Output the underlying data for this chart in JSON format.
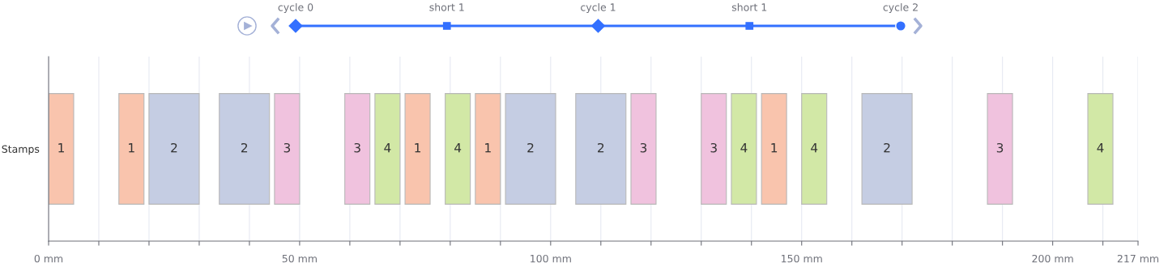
{
  "chart_data": {
    "type": "bar",
    "orientation": "horizontal",
    "categories": [
      "Stamps"
    ],
    "xlim": [
      0,
      217
    ],
    "xticks": [
      {
        "value": 0,
        "label": "0 mm"
      },
      {
        "value": 10,
        "label": null
      },
      {
        "value": 20,
        "label": null
      },
      {
        "value": 30,
        "label": null
      },
      {
        "value": 40,
        "label": null
      },
      {
        "value": 50,
        "label": "50 mm"
      },
      {
        "value": 60,
        "label": null
      },
      {
        "value": 70,
        "label": null
      },
      {
        "value": 80,
        "label": null
      },
      {
        "value": 90,
        "label": null
      },
      {
        "value": 100,
        "label": "100 mm"
      },
      {
        "value": 110,
        "label": null
      },
      {
        "value": 120,
        "label": null
      },
      {
        "value": 130,
        "label": null
      },
      {
        "value": 140,
        "label": null
      },
      {
        "value": 150,
        "label": "150 mm"
      },
      {
        "value": 160,
        "label": null
      },
      {
        "value": 170,
        "label": null
      },
      {
        "value": 180,
        "label": null
      },
      {
        "value": 190,
        "label": null
      },
      {
        "value": 200,
        "label": "200 mm"
      },
      {
        "value": 210,
        "label": null
      },
      {
        "value": 217,
        "label": "217 mm"
      }
    ],
    "grid": "x",
    "annotations": [
      "cycle 0",
      "short 1",
      "cycle 1",
      "short 1",
      "cycle 2"
    ],
    "series": [
      {
        "name": "1",
        "color": "#f9c4ad",
        "base": [
          0
        ],
        "values": [
          5
        ]
      },
      {
        "name": "1",
        "color": "#f9c4ad",
        "base": [
          14
        ],
        "values": [
          5
        ]
      },
      {
        "name": "2",
        "color": "#c5cde3",
        "base": [
          20
        ],
        "values": [
          10
        ]
      },
      {
        "name": "2",
        "color": "#c5cde3",
        "base": [
          34
        ],
        "values": [
          10
        ]
      },
      {
        "name": "3",
        "color": "#f0c2de",
        "base": [
          45
        ],
        "values": [
          5
        ]
      },
      {
        "name": "3",
        "color": "#f0c2de",
        "base": [
          59
        ],
        "values": [
          5
        ]
      },
      {
        "name": "4",
        "color": "#d2e8a6",
        "base": [
          65
        ],
        "values": [
          5
        ]
      },
      {
        "name": "1",
        "color": "#f9c4ad",
        "base": [
          71
        ],
        "values": [
          5
        ]
      },
      {
        "name": "4",
        "color": "#d2e8a6",
        "base": [
          79
        ],
        "values": [
          5
        ]
      },
      {
        "name": "1",
        "color": "#f9c4ad",
        "base": [
          85
        ],
        "values": [
          5
        ]
      },
      {
        "name": "2",
        "color": "#c5cde3",
        "base": [
          91
        ],
        "values": [
          10
        ]
      },
      {
        "name": "2",
        "color": "#c5cde3",
        "base": [
          105
        ],
        "values": [
          10
        ]
      },
      {
        "name": "3",
        "color": "#f0c2de",
        "base": [
          116
        ],
        "values": [
          5
        ]
      },
      {
        "name": "3",
        "color": "#f0c2de",
        "base": [
          130
        ],
        "values": [
          5
        ]
      },
      {
        "name": "4",
        "color": "#d2e8a6",
        "base": [
          136
        ],
        "values": [
          5
        ]
      },
      {
        "name": "1",
        "color": "#f9c4ad",
        "base": [
          142
        ],
        "values": [
          5
        ]
      },
      {
        "name": "4",
        "color": "#d2e8a6",
        "base": [
          150
        ],
        "values": [
          5
        ]
      },
      {
        "name": "2",
        "color": "#c5cde3",
        "base": [
          162
        ],
        "values": [
          10
        ]
      },
      {
        "name": "3",
        "color": "#f0c2de",
        "base": [
          187
        ],
        "values": [
          5
        ]
      },
      {
        "name": "4",
        "color": "#d2e8a6",
        "base": [
          207
        ],
        "values": [
          5
        ]
      }
    ]
  }
}
